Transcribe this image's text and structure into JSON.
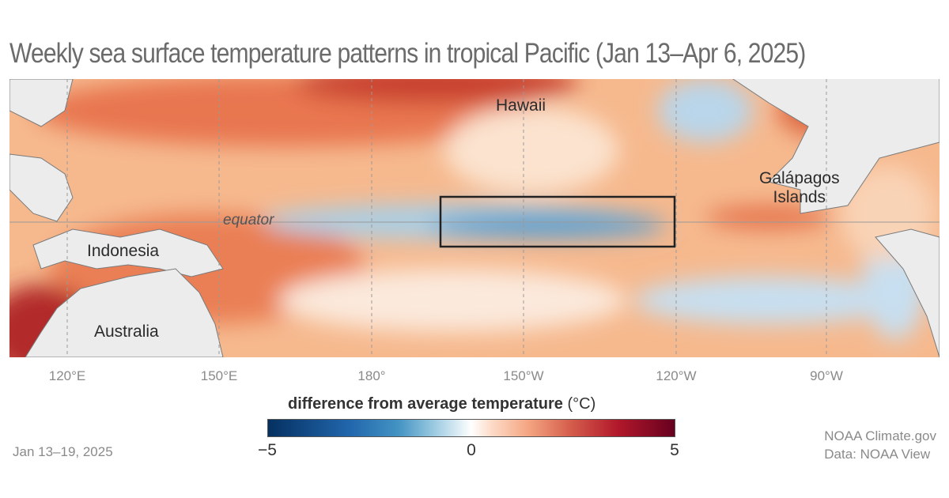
{
  "title": "Weekly sea surface temperature patterns in tropical Pacific (Jan 13–Apr 6, 2025)",
  "map": {
    "labels": {
      "hawaii": "Hawaii",
      "galapagos_1": "Galápagos",
      "galapagos_2": "Islands",
      "equator": "equator",
      "indonesia": "Indonesia",
      "australia": "Australia"
    },
    "longitude_ticks": [
      "120°E",
      "150°E",
      "180°",
      "150°W",
      "120°W",
      "90°W"
    ],
    "highlight_box": "Niño 3.4 region outline"
  },
  "legend": {
    "title": "difference from average temperature",
    "unit": "(°C)",
    "min": "−5",
    "mid": "0",
    "max": "5",
    "colors": [
      "#053061",
      "#2166ac",
      "#92c5de",
      "#ffffff",
      "#f4a582",
      "#b2182b",
      "#67001f"
    ]
  },
  "date": "Jan 13–19, 2025",
  "credit": {
    "line1": "NOAA Climate.gov",
    "line2": "Data: NOAA View"
  }
}
